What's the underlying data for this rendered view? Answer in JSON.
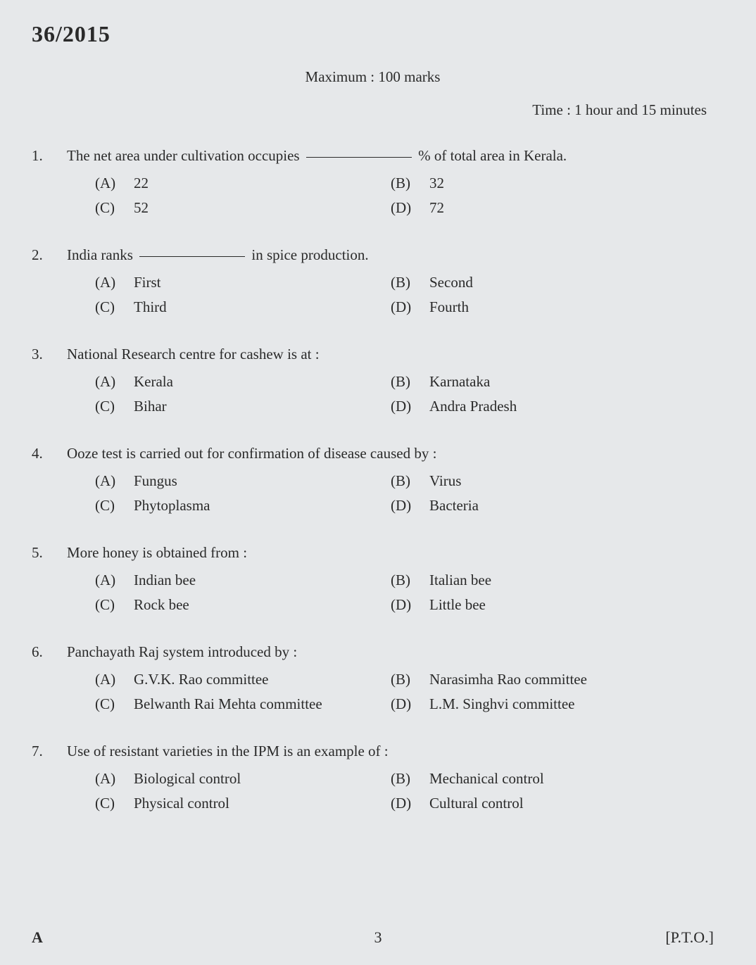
{
  "header": {
    "code": "36/2015",
    "max_marks": "Maximum : 100 marks",
    "time": "Time : 1 hour and 15 minutes"
  },
  "questions": [
    {
      "num": "1.",
      "text_pre": "The net area under cultivation occupies ",
      "text_post": " % of total area in Kerala.",
      "has_blank": true,
      "opts": {
        "A": "22",
        "B": "32",
        "C": "52",
        "D": "72"
      }
    },
    {
      "num": "2.",
      "text_pre": "India ranks ",
      "text_post": " in spice production.",
      "has_blank": true,
      "opts": {
        "A": "First",
        "B": "Second",
        "C": "Third",
        "D": "Fourth"
      }
    },
    {
      "num": "3.",
      "text_pre": "National Research centre for cashew is at :",
      "text_post": "",
      "has_blank": false,
      "opts": {
        "A": "Kerala",
        "B": "Karnataka",
        "C": "Bihar",
        "D": "Andra Pradesh"
      }
    },
    {
      "num": "4.",
      "text_pre": "Ooze test is carried out for confirmation of disease caused by :",
      "text_post": "",
      "has_blank": false,
      "opts": {
        "A": "Fungus",
        "B": "Virus",
        "C": "Phytoplasma",
        "D": "Bacteria"
      }
    },
    {
      "num": "5.",
      "text_pre": "More honey is obtained from :",
      "text_post": "",
      "has_blank": false,
      "opts": {
        "A": "Indian bee",
        "B": "Italian bee",
        "C": "Rock bee",
        "D": "Little bee"
      }
    },
    {
      "num": "6.",
      "text_pre": "Panchayath Raj system introduced by  :",
      "text_post": "",
      "has_blank": false,
      "opts": {
        "A": "G.V.K. Rao committee",
        "B": "Narasimha Rao committee",
        "C": "Belwanth Rai Mehta committee",
        "D": "L.M. Singhvi committee"
      }
    },
    {
      "num": "7.",
      "text_pre": "Use of resistant varieties in the IPM is an example of  :",
      "text_post": "",
      "has_blank": false,
      "opts": {
        "A": "Biological control",
        "B": "Mechanical control",
        "C": "Physical control",
        "D": "Cultural control"
      }
    }
  ],
  "footer": {
    "series": "A",
    "page": "3",
    "pto": "[P.T.O.]"
  },
  "labels": {
    "A": "(A)",
    "B": "(B)",
    "C": "(C)",
    "D": "(D)"
  }
}
